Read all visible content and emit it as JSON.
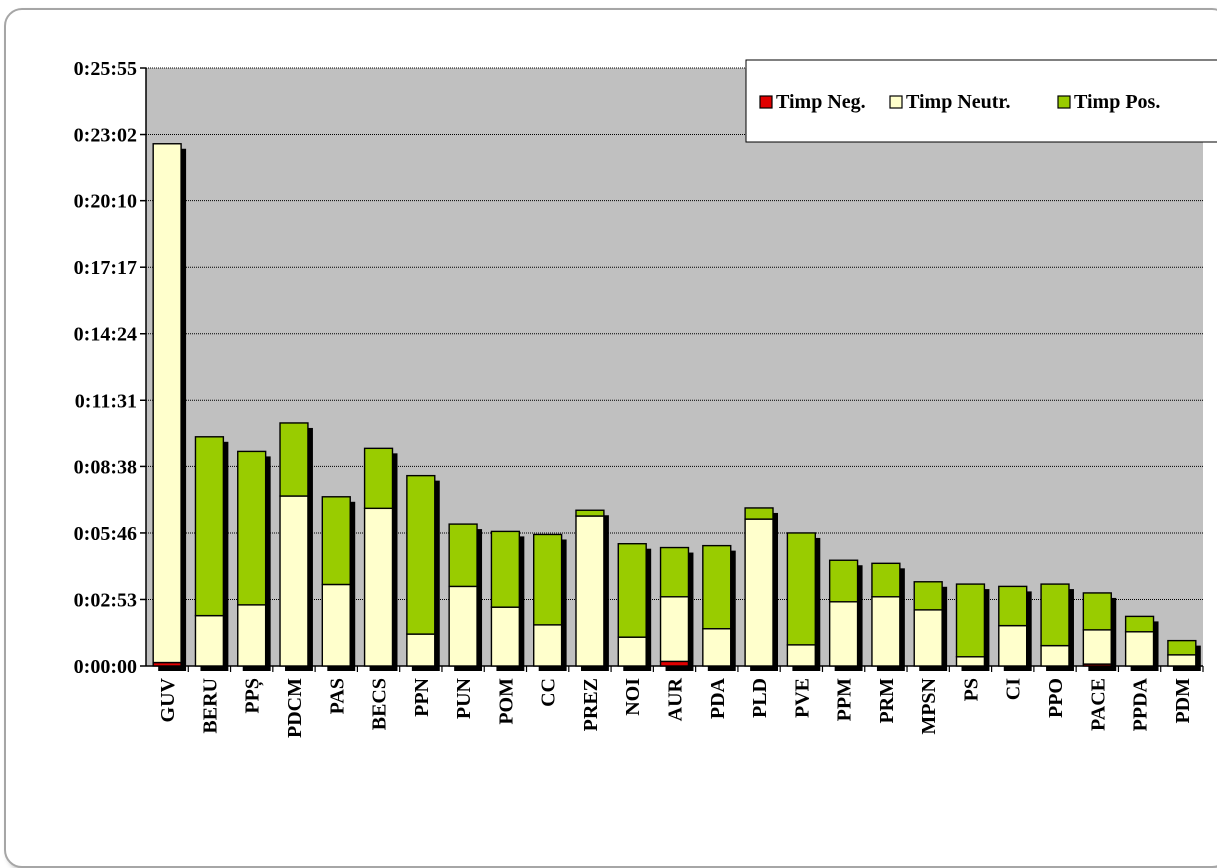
{
  "chart_data": {
    "type": "bar",
    "stacked": true,
    "y_unit": "seconds",
    "ylim": [
      0,
      1555
    ],
    "yticks": [
      0,
      173,
      346,
      519,
      691,
      864,
      1037,
      1210,
      1382,
      1555
    ],
    "ytick_labels": [
      "0:00:00",
      "0:02:53",
      "0:05:46",
      "0:08:38",
      "0:11:31",
      "0:14:24",
      "0:17:17",
      "0:20:10",
      "0:23:02",
      "0:25:55"
    ],
    "grid": true,
    "legend_position": "top-right",
    "categories": [
      "GUV",
      "BERU",
      "PPȘ",
      "PDCM",
      "PAS",
      "BECS",
      "PPN",
      "PUN",
      "POM",
      "CC",
      "PREZ",
      "NOI",
      "AUR",
      "PDA",
      "PLD",
      "PVE",
      "PPM",
      "PRM",
      "MPSN",
      "PS",
      "CI",
      "PPO",
      "PACE",
      "PPDA",
      "PDM"
    ],
    "series": [
      {
        "name": "Timp Neg.",
        "color": "#e00000",
        "values": [
          9,
          0,
          0,
          0,
          0,
          0,
          0,
          0,
          0,
          0,
          0,
          0,
          12,
          0,
          0,
          0,
          0,
          0,
          0,
          0,
          0,
          0,
          5,
          0,
          0
        ]
      },
      {
        "name": "Timp Neutr.",
        "color": "#ffffcc",
        "values": [
          1349,
          131,
          159,
          442,
          212,
          410,
          83,
          207,
          153,
          107,
          390,
          75,
          168,
          97,
          382,
          55,
          167,
          180,
          146,
          24,
          105,
          53,
          89,
          89,
          29
        ]
      },
      {
        "name": "Timp Pos.",
        "color": "#99cc00",
        "values": [
          0,
          465,
          399,
          190,
          228,
          156,
          412,
          162,
          197,
          235,
          15,
          243,
          128,
          216,
          29,
          291,
          108,
          87,
          73,
          189,
          102,
          160,
          96,
          40,
          37
        ]
      }
    ]
  }
}
